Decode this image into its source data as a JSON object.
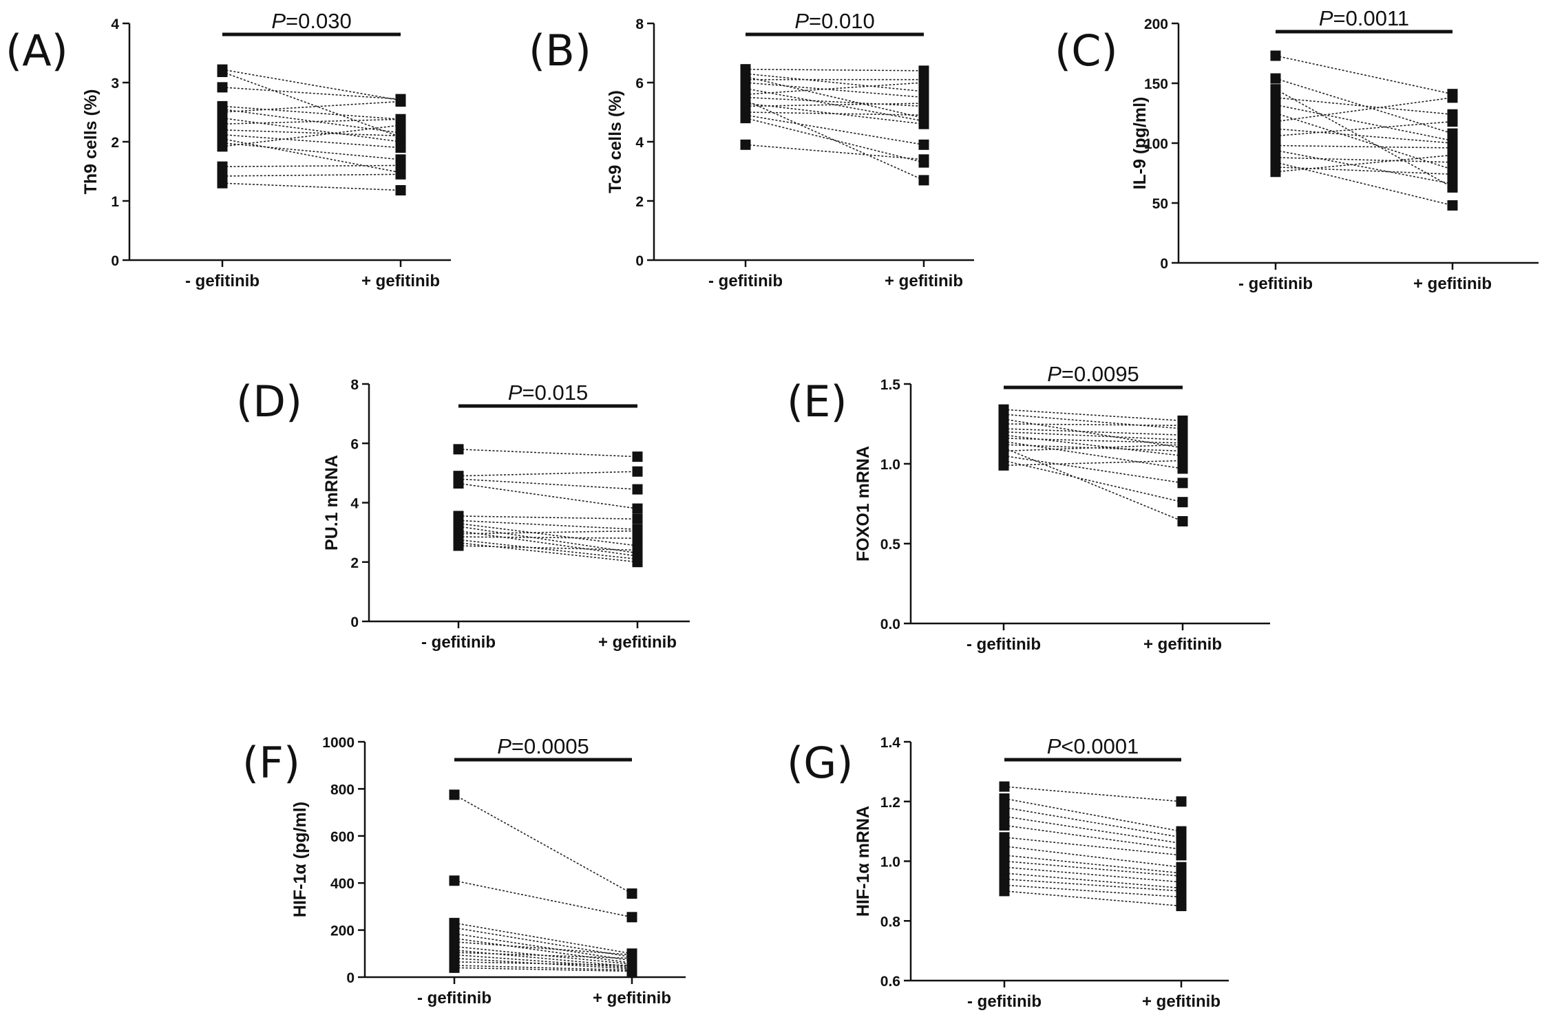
{
  "chart_data": [
    {
      "panel": "(A)",
      "type": "line",
      "ylabel": "Th9 cells (%)",
      "ylim": [
        0,
        4
      ],
      "yticks": [
        "0",
        "1",
        "2",
        "3",
        "4"
      ],
      "categories": [
        "- gefitinib",
        "+ gefitinib"
      ],
      "p_symbol": "P",
      "p_rest": "=0.030",
      "pairs": [
        [
          3.22,
          2.7
        ],
        [
          3.18,
          2.08
        ],
        [
          2.92,
          2.72
        ],
        [
          2.6,
          2.38
        ],
        [
          2.55,
          2.15
        ],
        [
          2.5,
          2.68
        ],
        [
          2.4,
          2.0
        ],
        [
          2.3,
          2.38
        ],
        [
          2.2,
          2.1
        ],
        [
          2.12,
          1.9
        ],
        [
          2.05,
          1.48
        ],
        [
          1.98,
          1.7
        ],
        [
          1.92,
          2.28
        ],
        [
          1.58,
          1.6
        ],
        [
          1.42,
          1.45
        ],
        [
          1.3,
          1.18
        ]
      ]
    },
    {
      "panel": "(B)",
      "type": "line",
      "ylabel": "Tc9 cells (%)",
      "ylim": [
        0,
        8
      ],
      "yticks": [
        "0",
        "2",
        "4",
        "6",
        "8"
      ],
      "categories": [
        "- gefitinib",
        "+ gefitinib"
      ],
      "p_symbol": "P",
      "p_rest": "=0.010",
      "pairs": [
        [
          6.45,
          6.4
        ],
        [
          6.3,
          5.7
        ],
        [
          6.2,
          4.8
        ],
        [
          6.1,
          6.1
        ],
        [
          6.0,
          5.5
        ],
        [
          5.8,
          4.7
        ],
        [
          5.6,
          6.0
        ],
        [
          5.5,
          5.2
        ],
        [
          5.4,
          2.7
        ],
        [
          5.3,
          4.6
        ],
        [
          5.2,
          5.3
        ],
        [
          5.0,
          4.9
        ],
        [
          4.9,
          3.9
        ],
        [
          4.8,
          3.3
        ],
        [
          3.9,
          3.4
        ]
      ]
    },
    {
      "panel": "(C)",
      "type": "line",
      "ylabel": "IL-9 (pg/ml)",
      "ylim": [
        0,
        200
      ],
      "yticks": [
        "0",
        "50",
        "100",
        "150",
        "200"
      ],
      "categories": [
        "- gefitinib",
        "+ gefitinib"
      ],
      "p_symbol": "P",
      "p_rest": "=0.0011",
      "pairs": [
        [
          173,
          141
        ],
        [
          154,
          108
        ],
        [
          145,
          63
        ],
        [
          138,
          124
        ],
        [
          132,
          102
        ],
        [
          125,
          78
        ],
        [
          118,
          138
        ],
        [
          112,
          100
        ],
        [
          106,
          118
        ],
        [
          98,
          96
        ],
        [
          94,
          66
        ],
        [
          88,
          84
        ],
        [
          84,
          48
        ],
        [
          80,
          74
        ],
        [
          76,
          90
        ]
      ]
    },
    {
      "panel": "(D)",
      "type": "line",
      "ylabel": "PU.1 mRNA",
      "ylim": [
        0,
        8
      ],
      "yticks": [
        "0",
        "2",
        "4",
        "6",
        "8"
      ],
      "categories": [
        "- gefitinib",
        "+ gefitinib"
      ],
      "p_symbol": "P",
      "p_rest": "=0.015",
      "pairs": [
        [
          5.8,
          5.55
        ],
        [
          4.9,
          5.05
        ],
        [
          4.8,
          4.45
        ],
        [
          4.65,
          3.8
        ],
        [
          3.55,
          3.45
        ],
        [
          3.4,
          3.1
        ],
        [
          3.3,
          2.55
        ],
        [
          3.2,
          2.3
        ],
        [
          3.05,
          2.2
        ],
        [
          2.95,
          3.05
        ],
        [
          2.85,
          2.8
        ],
        [
          2.75,
          2.1
        ],
        [
          2.65,
          2.0
        ],
        [
          2.55,
          2.4
        ]
      ]
    },
    {
      "panel": "(E)",
      "type": "line",
      "ylabel": "FOXO1 mRNA",
      "ylim": [
        0,
        1.5
      ],
      "yticks": [
        "0.0",
        "0.5",
        "1.0",
        "1.5"
      ],
      "categories": [
        "- gefitinib",
        "+ gefitinib"
      ],
      "p_symbol": "P",
      "p_rest": "=0.0095",
      "pairs": [
        [
          1.34,
          1.27
        ],
        [
          1.31,
          1.22
        ],
        [
          1.28,
          1.1
        ],
        [
          1.25,
          1.24
        ],
        [
          1.22,
          1.18
        ],
        [
          1.2,
          1.15
        ],
        [
          1.18,
          1.05
        ],
        [
          1.16,
          1.13
        ],
        [
          1.14,
          0.97
        ],
        [
          1.12,
          1.08
        ],
        [
          1.1,
          0.64
        ],
        [
          1.08,
          1.12
        ],
        [
          1.05,
          0.88
        ],
        [
          1.02,
          0.76
        ],
        [
          0.99,
          1.02
        ]
      ]
    },
    {
      "panel": "(F)",
      "type": "line",
      "ylabel": "HIF-1α (pg/ml)",
      "ylim": [
        0,
        1000
      ],
      "yticks": [
        "0",
        "200",
        "400",
        "600",
        "800",
        "1000"
      ],
      "categories": [
        "- gefitinib",
        "+ gefitinib"
      ],
      "p_symbol": "P",
      "p_rest": "=0.0005",
      "pairs": [
        [
          775,
          355
        ],
        [
          410,
          255
        ],
        [
          230,
          100
        ],
        [
          210,
          85
        ],
        [
          185,
          70
        ],
        [
          165,
          60
        ],
        [
          150,
          95
        ],
        [
          130,
          55
        ],
        [
          115,
          45
        ],
        [
          105,
          80
        ],
        [
          95,
          40
        ],
        [
          80,
          35
        ],
        [
          65,
          50
        ],
        [
          50,
          30
        ],
        [
          40,
          25
        ]
      ]
    },
    {
      "panel": "(G)",
      "type": "line",
      "ylabel": "HIF-1α mRNA",
      "ylim": [
        0.6,
        1.4
      ],
      "yticks": [
        "0.6",
        "0.8",
        "1.0",
        "1.2",
        "1.4"
      ],
      "categories": [
        "- gefitinib",
        "+ gefitinib"
      ],
      "p_symbol": "P",
      "p_rest": "<0.0001",
      "pairs": [
        [
          1.25,
          1.2
        ],
        [
          1.21,
          1.1
        ],
        [
          1.18,
          1.08
        ],
        [
          1.15,
          1.06
        ],
        [
          1.12,
          1.04
        ],
        [
          1.08,
          1.02
        ],
        [
          1.05,
          0.98
        ],
        [
          1.02,
          0.96
        ],
        [
          1.0,
          0.95
        ],
        [
          0.98,
          0.93
        ],
        [
          0.96,
          0.91
        ],
        [
          0.94,
          0.9
        ],
        [
          0.92,
          0.88
        ],
        [
          0.9,
          0.85
        ]
      ]
    }
  ]
}
